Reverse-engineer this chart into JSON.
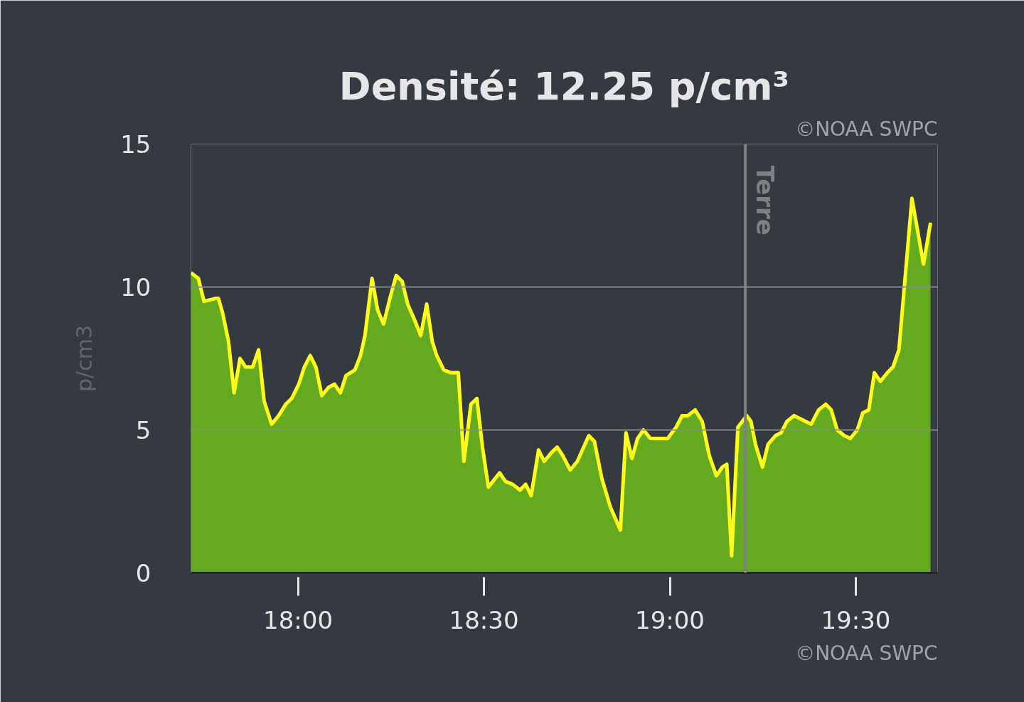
{
  "chart_data": {
    "type": "area",
    "title": "Densité: 12.25 p/cm³",
    "ylabel": "p/cm3",
    "annotations": [
      "©NOAA SWPC",
      "©NOAA SWPC"
    ],
    "x": [
      17.712,
      17.732,
      17.747,
      17.778,
      17.786,
      17.797,
      17.813,
      17.828,
      17.844,
      17.859,
      17.878,
      17.894,
      17.909,
      17.929,
      17.948,
      17.967,
      17.983,
      18.002,
      18.017,
      18.033,
      18.048,
      18.064,
      18.083,
      18.098,
      18.114,
      18.129,
      18.153,
      18.168,
      18.18,
      18.199,
      18.214,
      18.23,
      18.249,
      18.264,
      18.28,
      18.295,
      18.315,
      18.33,
      18.346,
      18.361,
      18.373,
      18.392,
      18.411,
      18.431,
      18.446,
      18.465,
      18.481,
      18.496,
      18.512,
      18.542,
      18.558,
      18.577,
      18.597,
      18.612,
      18.627,
      18.647,
      18.662,
      18.681,
      18.697,
      18.712,
      18.732,
      18.751,
      18.782,
      18.797,
      18.817,
      18.84,
      18.867,
      18.882,
      18.898,
      18.913,
      18.929,
      18.948,
      18.971,
      18.994,
      19.017,
      19.033,
      19.048,
      19.068,
      19.087,
      19.106,
      19.125,
      19.141,
      19.153,
      19.166,
      19.183,
      19.207,
      19.218,
      19.23,
      19.249,
      19.264,
      19.284,
      19.299,
      19.315,
      19.334,
      19.365,
      19.38,
      19.4,
      19.419,
      19.434,
      19.45,
      19.469,
      19.485,
      19.504,
      19.519,
      19.535,
      19.55,
      19.566,
      19.585,
      19.6,
      19.616,
      19.651,
      19.682,
      19.701
    ],
    "series": [
      {
        "color": "#ffff1a",
        "values": [
          10.5,
          10.3,
          9.5,
          9.6,
          9.6,
          9.1,
          8.1,
          6.3,
          7.5,
          7.2,
          7.2,
          7.8,
          6.0,
          5.2,
          5.5,
          5.9,
          6.1,
          6.6,
          7.2,
          7.6,
          7.2,
          6.2,
          6.5,
          6.6,
          6.3,
          6.9,
          7.1,
          7.6,
          8.3,
          10.3,
          9.2,
          8.7,
          9.7,
          10.4,
          10.2,
          9.4,
          8.8,
          8.3,
          9.4,
          8.1,
          7.6,
          7.1,
          7.0,
          7.0,
          3.9,
          5.9,
          6.1,
          4.4,
          3.0,
          3.5,
          3.2,
          3.1,
          2.9,
          3.1,
          2.7,
          4.3,
          3.9,
          4.2,
          4.4,
          4.1,
          3.6,
          3.9,
          4.8,
          4.6,
          3.3,
          2.3,
          1.5,
          4.9,
          4.0,
          4.7,
          5.0,
          4.7,
          4.7,
          4.7,
          5.1,
          5.5,
          5.5,
          5.7,
          5.3,
          4.1,
          3.4,
          3.7,
          3.8,
          0.6,
          5.1,
          5.5,
          5.3,
          4.5,
          3.7,
          4.5,
          4.8,
          4.9,
          5.3,
          5.5,
          5.3,
          5.2,
          5.7,
          5.9,
          5.7,
          5.0,
          4.8,
          4.7,
          5.0,
          5.6,
          5.7,
          7.0,
          6.7,
          7.0,
          7.2,
          7.8,
          13.1,
          10.8,
          12.25
        ]
      }
    ],
    "xlim": [
      17.712,
      19.72
    ],
    "xticks": [
      {
        "value": 18,
        "label": "18:00"
      },
      {
        "value": 18.5,
        "label": "18:30"
      },
      {
        "value": 19,
        "label": "19:00"
      },
      {
        "value": 19.5,
        "label": "19:30"
      }
    ],
    "ylim": [
      0,
      15
    ],
    "yticks": [
      0,
      5,
      10,
      15
    ],
    "grid": "y",
    "ref_lines": [
      {
        "axis": "x",
        "value": 19.203,
        "label": "Terre",
        "color": "#808080"
      }
    ]
  }
}
